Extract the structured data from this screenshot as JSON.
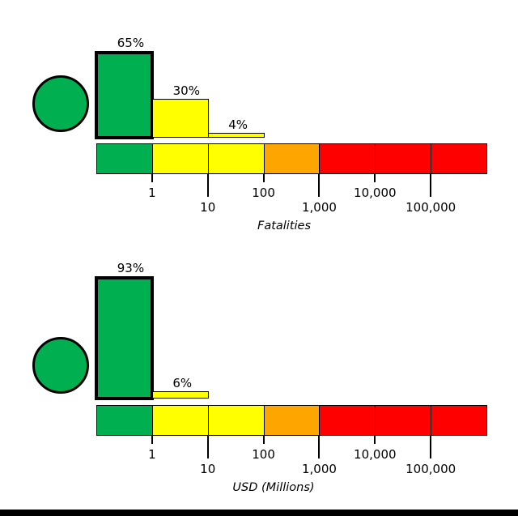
{
  "figure": {
    "background_color": "#FFFFFF",
    "bottom_bar_color": "#000000"
  },
  "colors": {
    "green": "#00B050",
    "yellow": "#FFFF00",
    "orange": "#FFA500",
    "red": "#FF0000",
    "outline": "#000000",
    "text": "#000000"
  },
  "chart_data": [
    {
      "type": "bar",
      "xlabel": "Fatalities",
      "x_scale": "log",
      "x_tick_labels": [
        "1",
        "10",
        "100",
        "1,000",
        "10,000",
        "100,000"
      ],
      "bar_values_percent": [
        65,
        30,
        4,
        0,
        0,
        0,
        0
      ],
      "bar_value_labels": [
        "65%",
        "30%",
        "4%",
        "",
        "",
        "",
        ""
      ],
      "highlighted_bin_index": 0,
      "scale_segment_colors": [
        "#00B050",
        "#FFFF00",
        "#FFFF00",
        "#FFA500",
        "#FF0000",
        "#FF0000",
        "#FF0000"
      ],
      "indicator_circle_color": "#00B050"
    },
    {
      "type": "bar",
      "xlabel": "USD (Millions)",
      "x_scale": "log",
      "x_tick_labels": [
        "1",
        "10",
        "100",
        "1,000",
        "10,000",
        "100,000"
      ],
      "bar_values_percent": [
        93,
        6,
        0,
        0,
        0,
        0,
        0
      ],
      "bar_value_labels": [
        "93%",
        "6%",
        "",
        "",
        "",
        "",
        ""
      ],
      "highlighted_bin_index": 0,
      "scale_segment_colors": [
        "#00B050",
        "#FFFF00",
        "#FFFF00",
        "#FFA500",
        "#FF0000",
        "#FF0000",
        "#FF0000"
      ],
      "indicator_circle_color": "#00B050"
    }
  ]
}
